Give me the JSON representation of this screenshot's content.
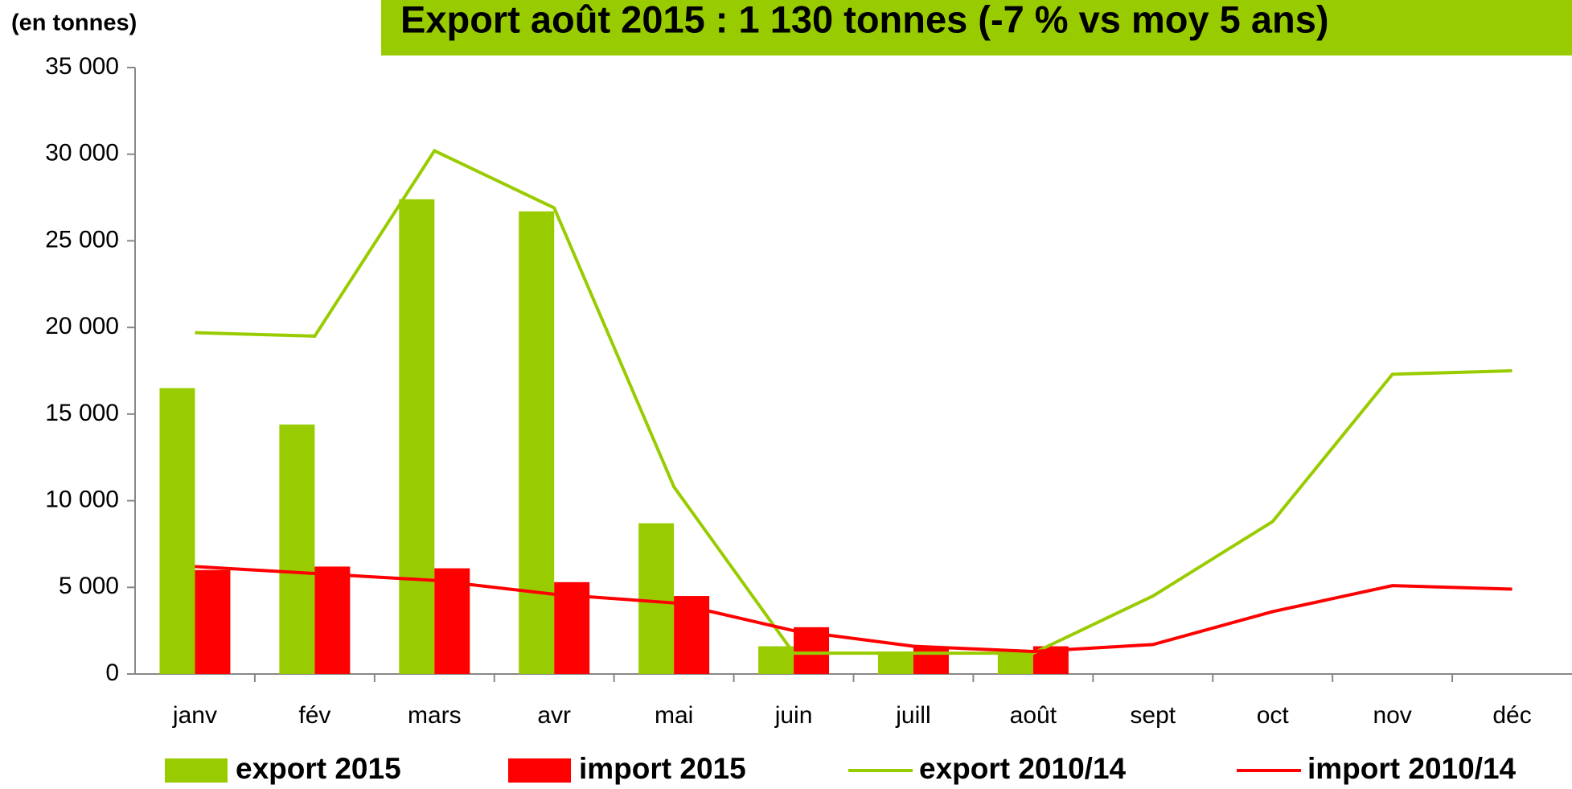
{
  "chart_data": {
    "type": "bar",
    "title": "Export août 2015 : 1 130 tonnes (-7 % vs moy 5 ans)",
    "y_label": "(en tonnes)",
    "categories": [
      "janv",
      "fév",
      "mars",
      "avr",
      "mai",
      "juin",
      "juill",
      "août",
      "sept",
      "oct",
      "nov",
      "déc"
    ],
    "series": [
      {
        "name": "export 2015",
        "type": "bar",
        "color": "#99cc00",
        "values": [
          16500,
          14400,
          27400,
          26700,
          8700,
          1600,
          1300,
          1130,
          null,
          null,
          null,
          null
        ]
      },
      {
        "name": "import 2015",
        "type": "bar",
        "color": "#ff0000",
        "values": [
          6000,
          6200,
          6100,
          5300,
          4500,
          2700,
          1600,
          1600,
          null,
          null,
          null,
          null
        ]
      },
      {
        "name": "export 2010/14",
        "type": "line",
        "color": "#99cc00",
        "values": [
          19700,
          19500,
          30200,
          26900,
          10800,
          1200,
          1200,
          1200,
          4500,
          8800,
          17300,
          17500
        ]
      },
      {
        "name": "import 2010/14",
        "type": "line",
        "color": "#ff0000",
        "values": [
          6200,
          5800,
          5400,
          4600,
          4100,
          2500,
          1600,
          1300,
          1700,
          3600,
          5100,
          4900
        ]
      }
    ],
    "ylim": [
      0,
      35000
    ],
    "yticks": [
      0,
      {
        "value": 5000,
        "label": "5 000"
      },
      {
        "value": 10000,
        "label": "10 000"
      },
      {
        "value": 15000,
        "label": "15 000"
      },
      {
        "value": 20000,
        "label": "20 000"
      },
      {
        "value": 25000,
        "label": "25 000"
      },
      {
        "value": 30000,
        "label": "30 000"
      },
      {
        "value": 35000,
        "label": "35 000"
      }
    ],
    "grid": false,
    "legend": "bottom"
  }
}
